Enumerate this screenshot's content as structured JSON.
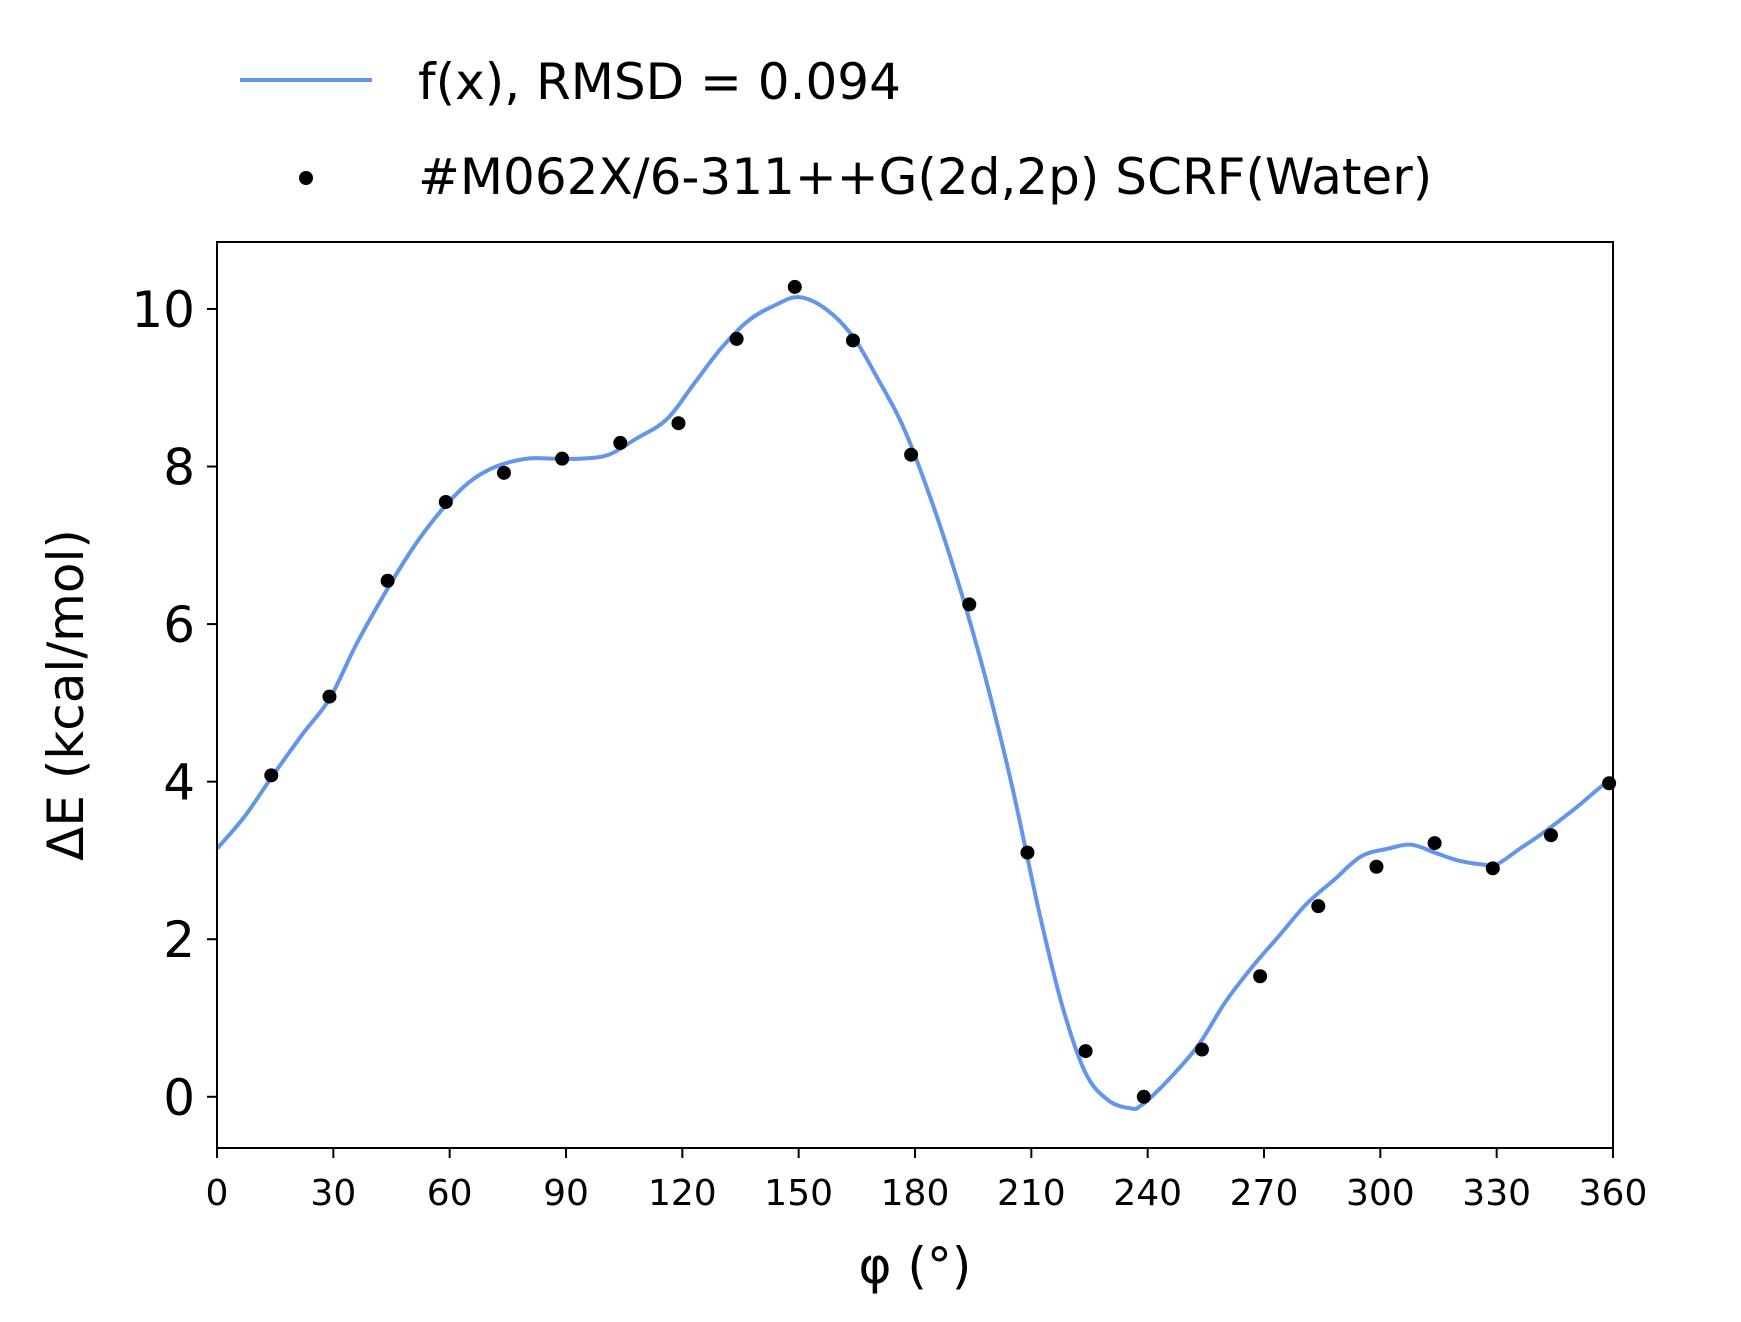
{
  "chart_data": {
    "type": "line",
    "xlabel": "φ (°)",
    "ylabel": "ΔE (kcal/mol)",
    "xlim": [
      0,
      360
    ],
    "ylim": [
      -0.65,
      10.85
    ],
    "xticks": [
      0,
      30,
      60,
      90,
      120,
      150,
      180,
      210,
      240,
      270,
      300,
      330,
      360
    ],
    "yticks": [
      0,
      2,
      4,
      6,
      8,
      10
    ],
    "grid": false,
    "legend_position": "above plot, left",
    "colors": {
      "fit": "#6495ED",
      "points": "#000000",
      "axes": "#000000"
    },
    "series": [
      {
        "name": "f(x), RMSD = 0.094",
        "style": "line",
        "x": [
          0,
          7,
          14,
          22,
          29,
          36,
          44,
          51,
          58,
          65,
          72,
          80,
          87,
          94,
          101,
          108,
          116,
          123,
          130,
          137,
          144,
          150,
          157,
          164,
          170,
          177,
          184,
          191,
          198,
          205,
          212,
          218,
          224,
          230,
          236,
          238,
          241,
          246,
          253,
          260,
          267,
          274,
          281,
          288,
          295,
          302,
          308,
          314,
          320,
          326,
          330,
          336,
          342,
          350,
          356,
          360
        ],
        "y": [
          3.15,
          3.55,
          4.05,
          4.6,
          5.05,
          5.75,
          6.45,
          7.0,
          7.45,
          7.8,
          8.0,
          8.1,
          8.1,
          8.1,
          8.15,
          8.35,
          8.6,
          9.05,
          9.5,
          9.85,
          10.05,
          10.15,
          10.0,
          9.65,
          9.15,
          8.5,
          7.6,
          6.55,
          5.35,
          3.95,
          2.35,
          1.15,
          0.3,
          -0.05,
          -0.15,
          -0.12,
          0.0,
          0.25,
          0.65,
          1.2,
          1.65,
          2.05,
          2.45,
          2.75,
          3.05,
          3.15,
          3.2,
          3.1,
          3.0,
          2.95,
          2.95,
          3.15,
          3.35,
          3.65,
          3.9,
          4.05
        ]
      },
      {
        "name": "#M062X/6-311++G(2d,2p) SCRF(Water)",
        "style": "points",
        "x": [
          14,
          29,
          44,
          59,
          74,
          89,
          104,
          119,
          134,
          149,
          164,
          179,
          194,
          209,
          224,
          239,
          254,
          269,
          284,
          299,
          314,
          329,
          344,
          359
        ],
        "y": [
          4.08,
          5.08,
          6.55,
          7.55,
          7.92,
          8.1,
          8.3,
          8.55,
          9.62,
          10.28,
          9.6,
          8.15,
          6.25,
          3.1,
          0.58,
          0.0,
          0.6,
          1.53,
          2.42,
          2.92,
          3.22,
          2.9,
          3.32,
          3.98
        ]
      }
    ]
  }
}
